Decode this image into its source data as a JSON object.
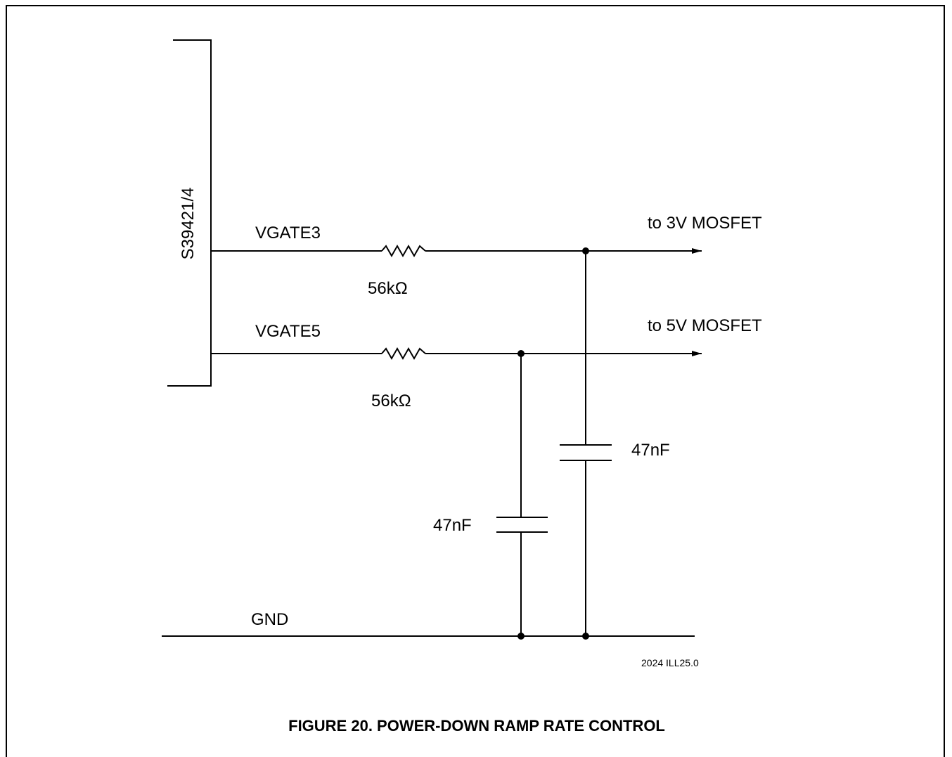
{
  "diagram": {
    "chip_label": "S39421/4",
    "nets": {
      "vgate3": "VGATE3",
      "vgate5": "VGATE5",
      "gnd": "GND"
    },
    "outputs": {
      "to_3v": "to 3V MOSFET",
      "to_5v": "to 5V MOSFET"
    },
    "components": {
      "r1_value": "56kΩ",
      "r2_value": "56kΩ",
      "c1_value": "47nF",
      "c2_value": "47nF"
    },
    "ref_code": "2024 ILL25.0",
    "caption": "FIGURE 20. POWER-DOWN RAMP RATE CONTROL"
  }
}
